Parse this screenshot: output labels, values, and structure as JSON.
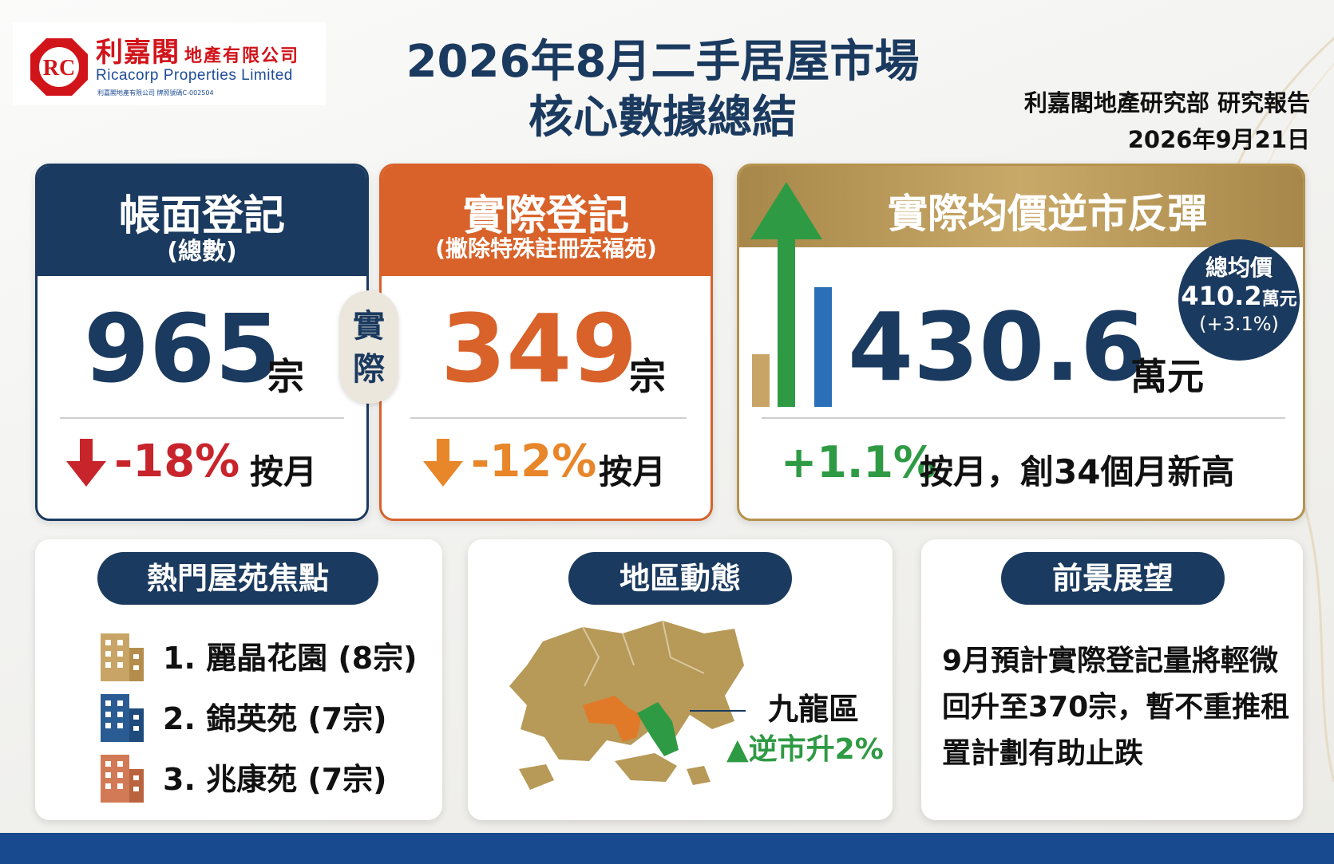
{
  "header": {
    "logo_cn": "利嘉閣",
    "logo_cn_sub": "地產有限公司",
    "logo_en": "Ricacorp Properties Limited",
    "logo_license": "利嘉閣地產有限公司 牌照號碼C-002504",
    "title_line1": "2026年8月二手居屋市場",
    "title_line2": "核心數據總結",
    "report_source": "利嘉閣地產研究部 研究報告",
    "report_date": "2026年9月21日"
  },
  "cards": {
    "book": {
      "title": "帳面登記",
      "subtitle": "(總數)",
      "value": "965",
      "unit": "宗",
      "change": "-18%",
      "change_word": "按月",
      "color": "#1b3a5f",
      "change_color": "#c8242c"
    },
    "connector": "實際",
    "actual": {
      "title": "實際登記",
      "subtitle": "(撇除特殊註冊宏福苑)",
      "value": "349",
      "unit": "宗",
      "change": "-12%",
      "change_word": "按月",
      "color": "#d8622a",
      "change_color": "#e8862a"
    },
    "price": {
      "title": "實際均價逆市反彈",
      "value": "430.6",
      "unit": "萬元",
      "change": "+1.1%",
      "change_word": "按月，創34個月新高",
      "color": "#b5924e",
      "change_color": "#2f9a44",
      "avg_label": "總均價",
      "avg_value": "410.2",
      "avg_unit": "萬元",
      "avg_change": "(+3.1%)"
    }
  },
  "hot_estates": {
    "title": "熱門屋苑焦點",
    "items": [
      {
        "text": "1. 麗晶花園 (8宗)",
        "icon": "building-icon",
        "color": "#c8a566"
      },
      {
        "text": "2. 錦英苑 (7宗)",
        "icon": "building-icon",
        "color": "#2a5c93"
      },
      {
        "text": "3. 兆康苑 (7宗)",
        "icon": "building-icon",
        "color": "#d27a55"
      }
    ]
  },
  "district": {
    "title": "地區動態",
    "name": "九龍區",
    "change": "▲逆市升2%",
    "map_icon": "hong-kong-map-icon",
    "highlight_color": "#2f9a44",
    "secondary_color": "#e07a28"
  },
  "outlook": {
    "title": "前景展望",
    "text": "9月預計實際登記量將輕微回升至370宗，暫不重推租置計劃有助止跌"
  }
}
